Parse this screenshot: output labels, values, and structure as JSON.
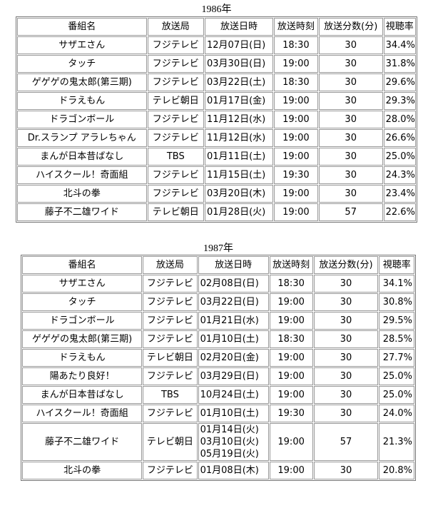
{
  "tables": [
    {
      "caption": "1986年",
      "header": [
        "番組名",
        "放送局",
        "放送日時",
        "放送時刻",
        "放送分数(分)",
        "視聴率"
      ],
      "rows": [
        [
          "サザエさん",
          "フジテレビ",
          [
            "12月07日(日)"
          ],
          "18:30",
          "30",
          "34.4%"
        ],
        [
          "タッチ",
          "フジテレビ",
          [
            "03月30日(日)"
          ],
          "19:00",
          "30",
          "31.8%"
        ],
        [
          "ゲゲゲの鬼太郎(第三期)",
          "フジテレビ",
          [
            "03月22日(土)"
          ],
          "18:30",
          "30",
          "29.6%"
        ],
        [
          "ドラえもん",
          "テレビ朝日",
          [
            "01月17日(金)"
          ],
          "19:00",
          "30",
          "29.3%"
        ],
        [
          "ドラゴンボール",
          "フジテレビ",
          [
            "11月12日(水)"
          ],
          "19:00",
          "30",
          "28.0%"
        ],
        [
          "Dr.スランプ アラレちゃん",
          "フジテレビ",
          [
            "11月12日(水)"
          ],
          "19:00",
          "30",
          "26.6%"
        ],
        [
          "まんが日本昔ばなし",
          "TBS",
          [
            "01月11日(土)"
          ],
          "19:00",
          "30",
          "25.0%"
        ],
        [
          "ハイスクール！奇面組",
          "フジテレビ",
          [
            "11月15日(土)"
          ],
          "19:30",
          "30",
          "24.3%"
        ],
        [
          "北斗の拳",
          "フジテレビ",
          [
            "03月20日(木)"
          ],
          "19:00",
          "30",
          "23.4%"
        ],
        [
          "藤子不二雄ワイド",
          "テレビ朝日",
          [
            "01月28日(火)"
          ],
          "19:00",
          "57",
          "22.6%"
        ]
      ]
    },
    {
      "caption": "1987年",
      "header": [
        "番組名",
        "放送局",
        "放送日時",
        "放送時刻",
        "放送分数(分)",
        "視聴率"
      ],
      "rows": [
        [
          "サザエさん",
          "フジテレビ",
          [
            "02月08日(日)"
          ],
          "18:30",
          "30",
          "34.1%"
        ],
        [
          "タッチ",
          "フジテレビ",
          [
            "03月22日(日)"
          ],
          "19:00",
          "30",
          "30.8%"
        ],
        [
          "ドラゴンボール",
          "フジテレビ",
          [
            "01月21日(水)"
          ],
          "19:00",
          "30",
          "29.5%"
        ],
        [
          "ゲゲゲの鬼太郎(第三期)",
          "フジテレビ",
          [
            "01月10日(土)"
          ],
          "18:30",
          "30",
          "28.5%"
        ],
        [
          "ドラえもん",
          "テレビ朝日",
          [
            "02月20日(金)"
          ],
          "19:00",
          "30",
          "27.7%"
        ],
        [
          "陽あたり良好！",
          "フジテレビ",
          [
            "03月29日(日)"
          ],
          "19:00",
          "30",
          "25.0%"
        ],
        [
          "まんが日本昔ばなし",
          "TBS",
          [
            "10月24日(土)"
          ],
          "19:00",
          "30",
          "25.0%"
        ],
        [
          "ハイスクール！奇面組",
          "フジテレビ",
          [
            "01月10日(土)"
          ],
          "19:30",
          "30",
          "24.0%"
        ],
        [
          "藤子不二雄ワイド",
          "テレビ朝日",
          [
            "01月14日(火)",
            "03月10日(火)",
            "05月19日(火)"
          ],
          "19:00",
          "57",
          "21.3%"
        ],
        [
          "北斗の拳",
          "フジテレビ",
          [
            "01月08日(木)"
          ],
          "19:00",
          "30",
          "20.8%"
        ]
      ]
    }
  ]
}
